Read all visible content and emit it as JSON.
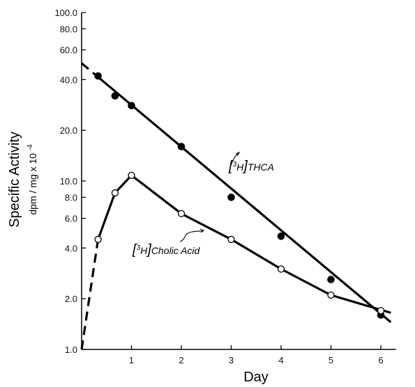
{
  "chart_data": {
    "type": "line",
    "scale_y": "log",
    "xlabel": "Day",
    "ylabel": "Specific Activity",
    "ylabel_units": "dpm / mg x 10",
    "ylabel_exponent": "-4",
    "xlim": [
      0,
      6.3
    ],
    "ylim": [
      1.0,
      100.0
    ],
    "grid": false,
    "x_ticks": [
      {
        "value": 1,
        "label": "1"
      },
      {
        "value": 2,
        "label": "2"
      },
      {
        "value": 3,
        "label": "3"
      },
      {
        "value": 4,
        "label": "4"
      },
      {
        "value": 5,
        "label": "5"
      },
      {
        "value": 6,
        "label": "6"
      }
    ],
    "y_ticks": [
      {
        "value": 1.0,
        "label": "1.0"
      },
      {
        "value": 2.0,
        "label": "2.0"
      },
      {
        "value": 4.0,
        "label": "4.0"
      },
      {
        "value": 6.0,
        "label": "6.0"
      },
      {
        "value": 8.0,
        "label": "8.0"
      },
      {
        "value": 10.0,
        "label": "10.0"
      },
      {
        "value": 20.0,
        "label": "20.0"
      },
      {
        "value": 40.0,
        "label": "40.0"
      },
      {
        "value": 60.0,
        "label": "60.0"
      },
      {
        "value": 80.0,
        "label": "80.0"
      },
      {
        "value": 100.0,
        "label": "100.0"
      }
    ],
    "series": [
      {
        "name": "[³H]THCA",
        "label_main": "THCA",
        "label_sup": "3",
        "label_element": "H",
        "marker": "filled-circle",
        "color": "#000000",
        "x": [
          0.33,
          0.67,
          1.0,
          2.0,
          3.0,
          4.0,
          5.0,
          6.0
        ],
        "y": [
          42.0,
          32.0,
          28.0,
          16.0,
          8.0,
          4.7,
          2.6,
          1.6
        ],
        "fit_line": {
          "x": [
            0.0,
            6.2
          ],
          "y": [
            50.0,
            1.45
          ],
          "dashed_until": 0.33
        }
      },
      {
        "name": "[³H]Cholic Acid",
        "label_main": "Cholic Acid",
        "label_sup": "3",
        "label_element": "H",
        "marker": "open-circle",
        "color": "#000000",
        "x": [
          0.33,
          0.67,
          1.0,
          2.0,
          3.0,
          4.0,
          5.0,
          6.0
        ],
        "y": [
          4.5,
          8.5,
          10.8,
          6.4,
          4.5,
          3.0,
          2.1,
          1.7
        ],
        "curve": {
          "x": [
            0.0,
            0.33,
            0.67,
            1.0,
            2.0,
            3.0,
            4.0,
            5.0,
            6.2
          ],
          "y": [
            1.0,
            4.5,
            8.5,
            10.8,
            6.4,
            4.5,
            3.0,
            2.1,
            1.65
          ],
          "dashed_until": 0.33
        }
      }
    ]
  }
}
